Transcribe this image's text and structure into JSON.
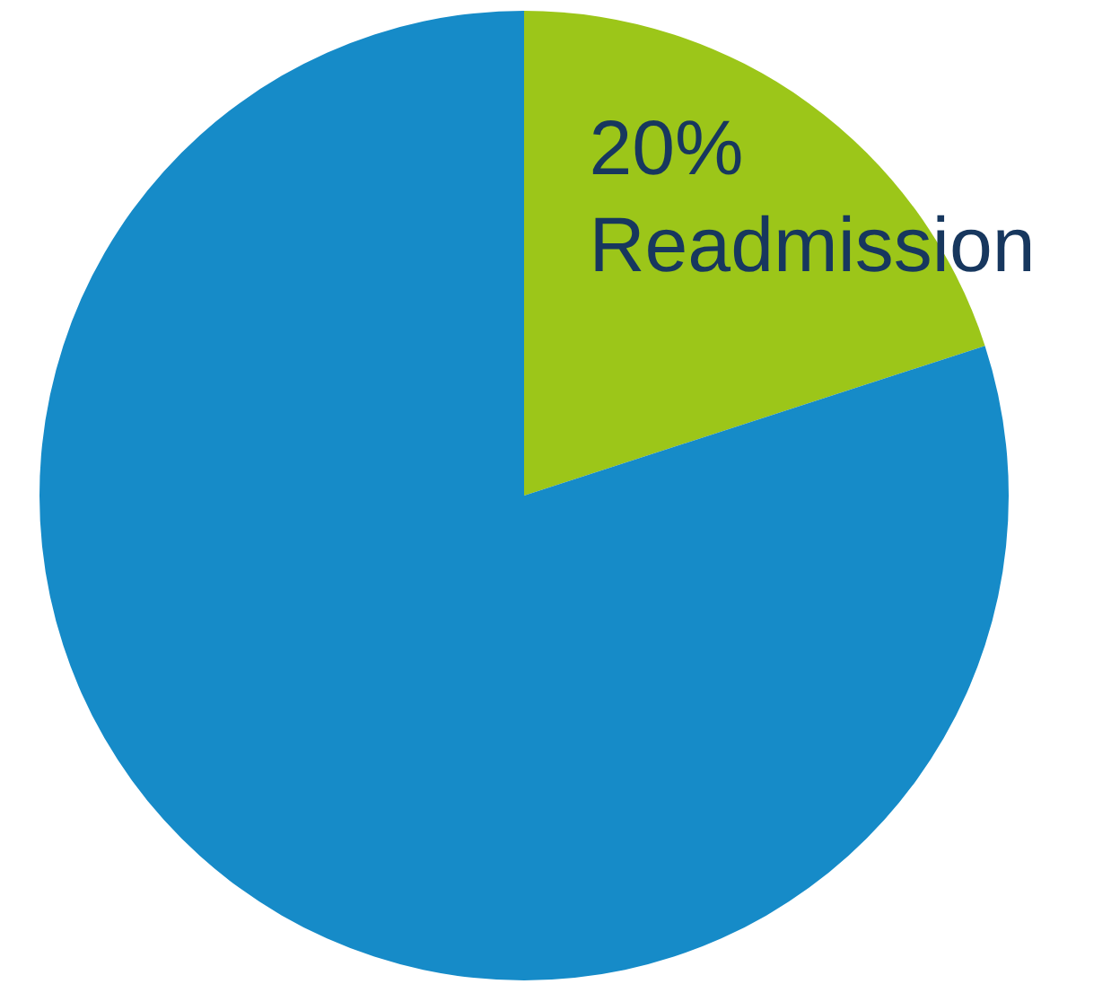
{
  "chart_data": {
    "type": "pie",
    "categories": [
      "Readmission",
      null
    ],
    "values": [
      20,
      80
    ],
    "colors": [
      "#9cc619",
      "#168bc8"
    ],
    "value_labels": [
      "20%",
      null
    ]
  }
}
